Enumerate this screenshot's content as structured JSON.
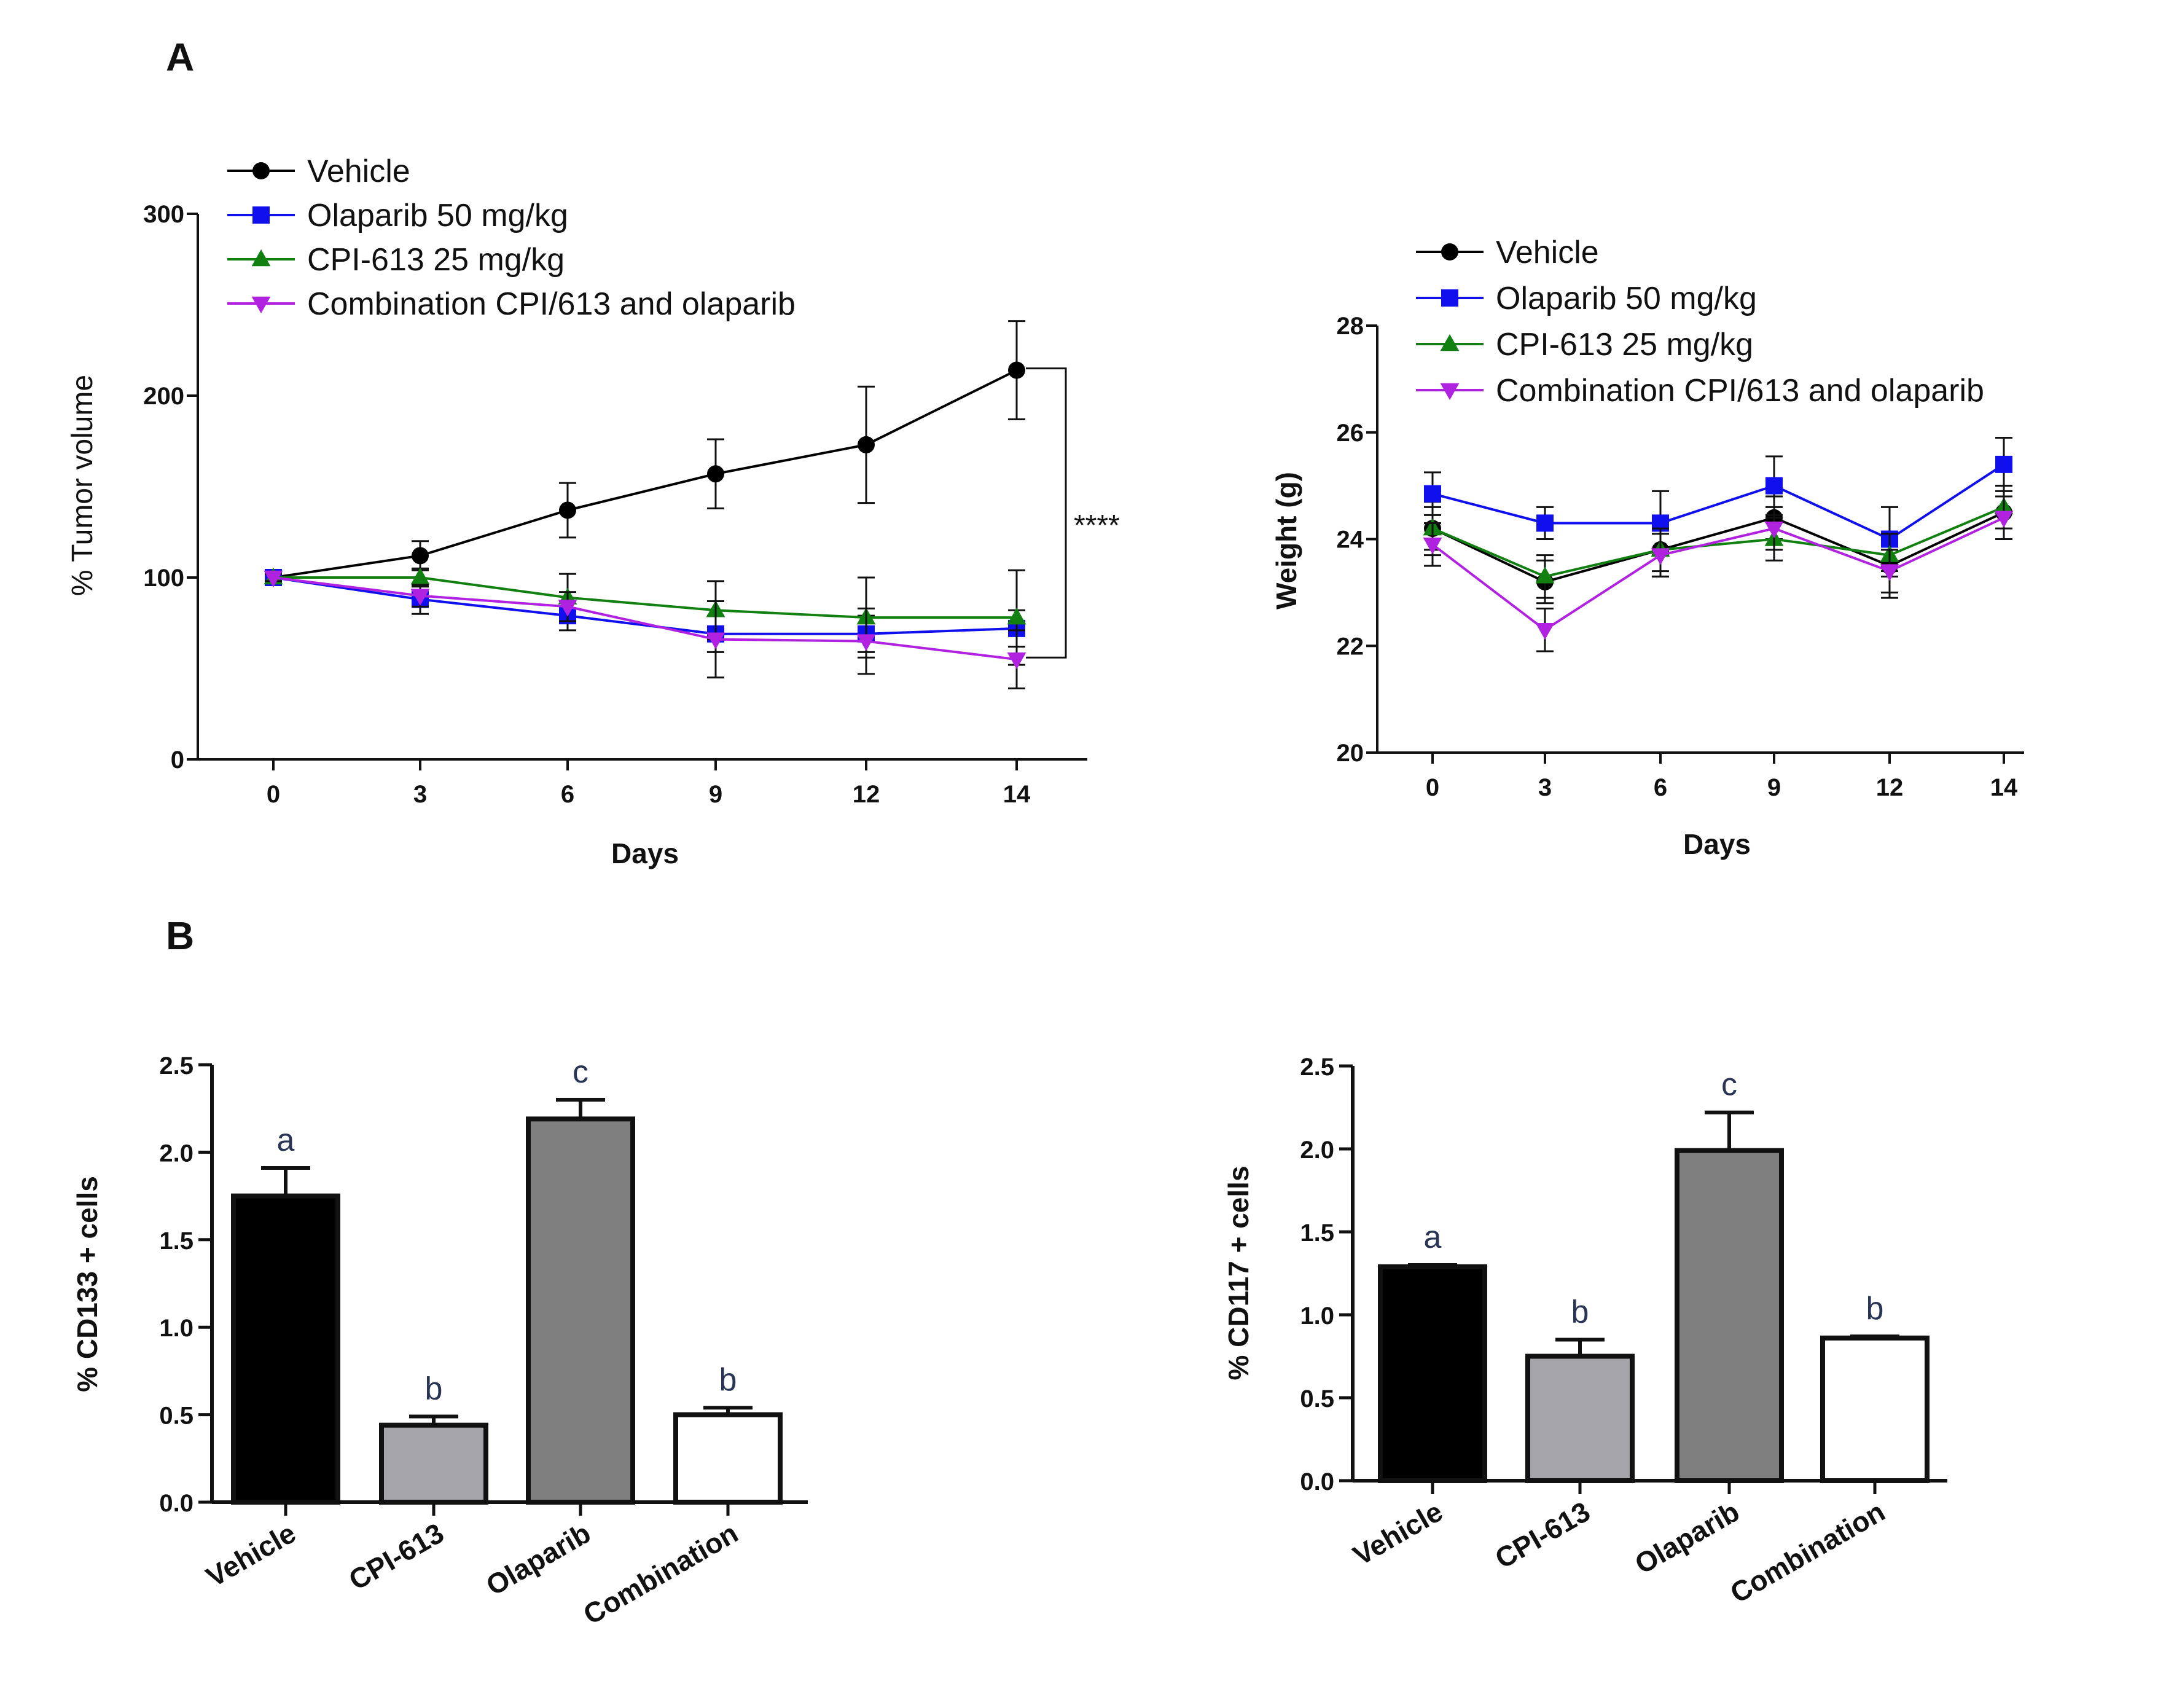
{
  "panels": {
    "a": "A",
    "b": "B"
  },
  "colors": {
    "vehicle": "#000000",
    "olaparib": "#1010ee",
    "cpi": "#118011",
    "combination": "#b122e0",
    "bar_vehicle": "#000000",
    "bar_cpi": "#a5a5a9",
    "bar_olaparib": "#7f7f7f",
    "bar_combination": "#ffffff"
  },
  "chart_data": [
    {
      "id": "tumor",
      "type": "line",
      "xlabel": "Days",
      "ylabel": "% Tumor volume",
      "x": [
        0,
        3,
        6,
        9,
        12,
        14
      ],
      "xticks": [
        "0",
        "3",
        "6",
        "9",
        "12",
        "14"
      ],
      "ylim": [
        0,
        300
      ],
      "yticks": [
        0,
        100,
        200,
        300
      ],
      "series": [
        {
          "name": "Vehicle",
          "marker": "circle",
          "values": [
            100,
            112,
            137,
            157,
            173,
            214
          ],
          "errors": [
            2,
            8,
            15,
            19,
            32,
            27
          ]
        },
        {
          "name": "Olaparib 50 mg/kg",
          "marker": "square",
          "values": [
            100,
            88,
            79,
            69,
            69,
            72
          ],
          "errors": [
            2,
            8,
            8,
            10,
            10,
            10
          ]
        },
        {
          "name": "CPI-613 25 mg/kg",
          "marker": "triangle-up",
          "values": [
            100,
            100,
            89,
            82,
            78,
            78
          ],
          "errors": [
            2,
            5,
            13,
            16,
            22,
            26
          ]
        },
        {
          "name": "Combination CPI/613 and olaparib",
          "marker": "triangle-down",
          "values": [
            100,
            90,
            84,
            66,
            65,
            55
          ],
          "errors": [
            2,
            6,
            8,
            21,
            18,
            16
          ]
        }
      ],
      "annotation": "****"
    },
    {
      "id": "weight",
      "type": "line",
      "xlabel": "Days",
      "ylabel": "Weight (g)",
      "x": [
        0,
        3,
        6,
        9,
        12,
        14
      ],
      "xticks": [
        "0",
        "3",
        "6",
        "9",
        "12",
        "14"
      ],
      "ylim": [
        20,
        28
      ],
      "yticks": [
        20,
        22,
        24,
        26,
        28
      ],
      "series": [
        {
          "name": "Vehicle",
          "marker": "circle",
          "values": [
            24.2,
            23.2,
            23.8,
            24.4,
            23.5,
            24.5
          ],
          "errors": [
            0.5,
            0.4,
            0.5,
            0.4,
            0.6,
            0.5
          ]
        },
        {
          "name": "Olaparib 50 mg/kg",
          "marker": "square",
          "values": [
            24.85,
            24.3,
            24.3,
            25.0,
            24.0,
            25.4
          ],
          "errors": [
            0.4,
            0.3,
            0.6,
            0.55,
            0.6,
            0.5
          ]
        },
        {
          "name": "CPI-613 25 mg/kg",
          "marker": "triangle-up",
          "values": [
            24.2,
            23.3,
            23.8,
            24.0,
            23.7,
            24.6
          ],
          "errors": [
            0.4,
            0.4,
            0.4,
            0.4,
            0.4,
            0.4
          ]
        },
        {
          "name": "Combination CPI/613 and olaparib",
          "marker": "triangle-down",
          "values": [
            23.9,
            22.3,
            23.7,
            24.2,
            23.4,
            24.4
          ],
          "errors": [
            0.4,
            0.4,
            0.4,
            0.4,
            0.4,
            0.4
          ]
        }
      ]
    },
    {
      "id": "cd133",
      "type": "bar",
      "ylabel": "% CD133 + cells",
      "categories": [
        "Vehicle",
        "CPI-613",
        "Olaparib",
        "Combination"
      ],
      "values": [
        1.75,
        0.44,
        2.19,
        0.5
      ],
      "errors": [
        0.16,
        0.05,
        0.11,
        0.04
      ],
      "letters": [
        "a",
        "b",
        "c",
        "b"
      ],
      "ylim": [
        0,
        2.5
      ],
      "yticks": [
        "0.0",
        "0.5",
        "1.0",
        "1.5",
        "2.0",
        "2.5"
      ]
    },
    {
      "id": "cd117",
      "type": "bar",
      "ylabel": "% CD117 + cells",
      "categories": [
        "Vehicle",
        "CPI-613",
        "Olaparib",
        "Combination"
      ],
      "values": [
        1.29,
        0.75,
        1.99,
        0.86
      ],
      "errors": [
        0.01,
        0.1,
        0.23,
        0.01
      ],
      "letters": [
        "a",
        "b",
        "c",
        "b"
      ],
      "ylim": [
        0,
        2.5
      ],
      "yticks": [
        "0.0",
        "0.5",
        "1.0",
        "1.5",
        "2.0",
        "2.5"
      ]
    }
  ]
}
